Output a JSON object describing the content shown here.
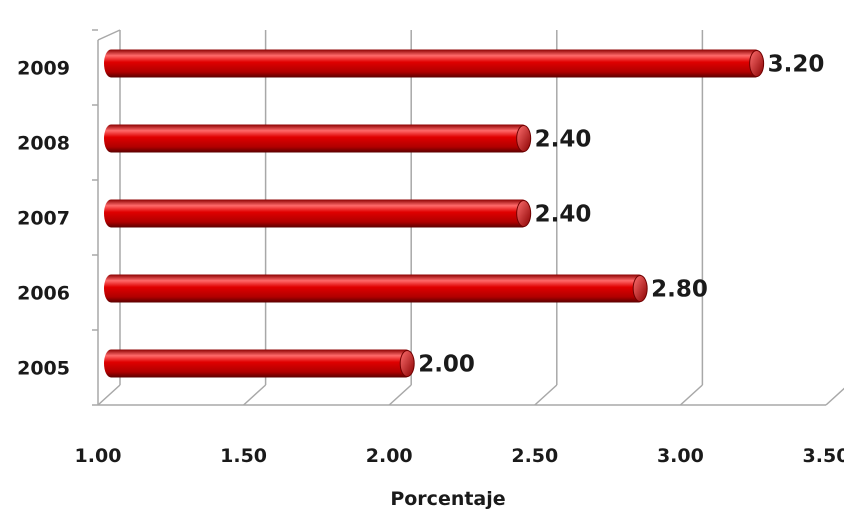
{
  "chart_data": {
    "type": "bar",
    "orientation": "horizontal",
    "style": "3d-cylinder",
    "categories": [
      "2005",
      "2006",
      "2007",
      "2008",
      "2009"
    ],
    "values": [
      2.0,
      2.8,
      2.4,
      2.4,
      3.2
    ],
    "value_labels": [
      "2.00",
      "2.80",
      "2.40",
      "2.40",
      "3.20"
    ],
    "xlabel": "Porcentaje",
    "xlim": [
      1.0,
      3.5
    ],
    "xticks": [
      "1.00",
      "1.50",
      "2.00",
      "2.50",
      "3.00",
      "3.50"
    ],
    "grid": true,
    "legend": "none",
    "colors": {
      "bar": "#d40000",
      "bar_dark": "#7a0000",
      "bar_light": "#ff5a5a",
      "grid": "#a8a8a8"
    }
  }
}
